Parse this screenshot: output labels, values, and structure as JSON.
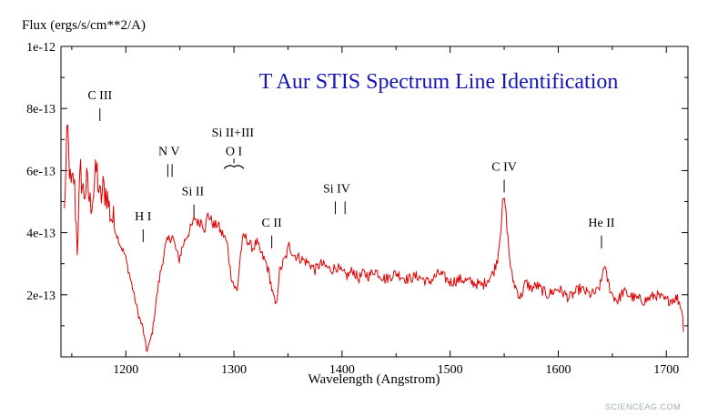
{
  "chart_data": {
    "type": "line",
    "title": "T Aur STIS Spectrum Line Identification",
    "title_color": "#1515b5",
    "line_color": "#e00000",
    "xlabel": "Wavelength (Angstrom)",
    "ylabel": "Flux (ergs/s/cm**2/A)",
    "xlim": [
      1140,
      1720
    ],
    "ylim": [
      0,
      1e-12
    ],
    "xticks": [
      1200,
      1300,
      1400,
      1500,
      1600,
      1700
    ],
    "xtick_labels": [
      "1200",
      "1300",
      "1400",
      "1500",
      "1600",
      "1700"
    ],
    "yticks": [
      2e-13,
      4e-13,
      6e-13,
      8e-13,
      1e-12
    ],
    "ytick_labels": [
      "2e-13",
      "4e-13",
      "6e-13",
      "8e-13",
      "1e-12"
    ],
    "grid": false,
    "series": [
      {
        "x": [
          1143,
          1146,
          1149,
          1152,
          1155,
          1158,
          1161,
          1164,
          1167,
          1170,
          1173,
          1176,
          1179,
          1182,
          1185,
          1188,
          1191,
          1195,
          1199,
          1203,
          1207,
          1210,
          1213,
          1216,
          1219,
          1222,
          1225,
          1228,
          1231,
          1234,
          1237,
          1240,
          1243,
          1246,
          1249,
          1252,
          1255,
          1258,
          1261,
          1264,
          1267,
          1270,
          1273,
          1276,
          1279,
          1282,
          1285,
          1288,
          1291,
          1294,
          1297,
          1300,
          1303,
          1306,
          1309,
          1312,
          1315,
          1318,
          1321,
          1324,
          1327,
          1330,
          1333,
          1336,
          1339,
          1342,
          1345,
          1348,
          1351,
          1355,
          1360,
          1365,
          1370,
          1375,
          1380,
          1385,
          1390,
          1395,
          1400,
          1405,
          1410,
          1415,
          1420,
          1425,
          1430,
          1440,
          1450,
          1460,
          1470,
          1480,
          1490,
          1500,
          1510,
          1520,
          1530,
          1535,
          1540,
          1544,
          1547,
          1549,
          1551,
          1553,
          1555,
          1557,
          1560,
          1565,
          1570,
          1575,
          1580,
          1590,
          1600,
          1610,
          1620,
          1630,
          1636,
          1640,
          1642,
          1644,
          1647,
          1650,
          1655,
          1660,
          1670,
          1680,
          1690,
          1700,
          1710,
          1714,
          1716
        ],
        "y": [
          4.6e-13,
          7.4e-13,
          5.3e-13,
          5.8e-13,
          3.6e-13,
          6e-13,
          5.2e-13,
          5.6e-13,
          4.9e-13,
          5.3e-13,
          6.1e-13,
          5e-13,
          5.4e-13,
          5.3e-13,
          4.7e-13,
          4.4e-13,
          4e-13,
          3.6e-13,
          3.3e-13,
          2.7e-13,
          2.1e-13,
          1.6e-13,
          1.2e-13,
          9e-14,
          2e-14,
          4e-14,
          9e-14,
          1.8e-13,
          2.5e-13,
          3.1e-13,
          3.6e-13,
          3.8e-13,
          3.9e-13,
          3.5e-13,
          3.1e-13,
          3.5e-13,
          3.8e-13,
          4e-13,
          4.2e-13,
          4.5e-13,
          4.3e-13,
          4.4e-13,
          4.1e-13,
          4.6e-13,
          4.4e-13,
          4.2e-13,
          4.3e-13,
          4e-13,
          3.9e-13,
          3.6e-13,
          2.7e-13,
          2.3e-13,
          2.1e-13,
          3.3e-13,
          3.9e-13,
          3.8e-13,
          3.6e-13,
          3.5e-13,
          3.7e-13,
          3.4e-13,
          3.2e-13,
          3e-13,
          2.6e-13,
          2e-13,
          1.6e-13,
          2.7e-13,
          3e-13,
          3.2e-13,
          3.6e-13,
          3.3e-13,
          3.2e-13,
          3.1e-13,
          3e-13,
          2.8e-13,
          3e-13,
          2.9e-13,
          2.8e-13,
          2.9e-13,
          2.7e-13,
          2.6e-13,
          2.8e-13,
          2.5e-13,
          2.7e-13,
          2.6e-13,
          2.8e-13,
          2.5e-13,
          2.7e-13,
          2.5e-13,
          2.6e-13,
          2.4e-13,
          2.7e-13,
          2.4e-13,
          2.5e-13,
          2.4e-13,
          2.3e-13,
          2.5e-13,
          2.7e-13,
          3.2e-13,
          4.2e-13,
          5.1e-13,
          4.9e-13,
          4e-13,
          3.2e-13,
          2.6e-13,
          2.3e-13,
          1.9e-13,
          2.4e-13,
          2.2e-13,
          2.3e-13,
          2e-13,
          2.2e-13,
          1.9e-13,
          2.2e-13,
          2e-13,
          2.1e-13,
          2.4e-13,
          3e-13,
          2.7e-13,
          2.3e-13,
          2e-13,
          1.8e-13,
          2.1e-13,
          1.9e-13,
          1.8e-13,
          2e-13,
          1.8e-13,
          1.9e-13,
          1.6e-13,
          9e-14
        ]
      }
    ],
    "line_ids": [
      {
        "label": "C III",
        "x": 1176,
        "flux": 8.3e-13,
        "ticks": [
          1176
        ]
      },
      {
        "label": "N V",
        "x": 1240,
        "flux": 6.5e-13,
        "ticks": [
          1238.8,
          1242.8
        ]
      },
      {
        "label": "H I",
        "x": 1216,
        "flux": 4.4e-13,
        "ticks": [
          1216
        ]
      },
      {
        "label": "Si II",
        "x": 1262,
        "flux": 5.2e-13,
        "ticks": [
          1263
        ]
      },
      {
        "label": "Si II+III",
        "x": 1299,
        "flux": 7.1e-13,
        "ticks": []
      },
      {
        "label": "O I",
        "x": 1300,
        "flux": 6.5e-13,
        "ticks": [
          1300
        ],
        "brace": true
      },
      {
        "label": "C II",
        "x": 1335,
        "flux": 4.2e-13,
        "ticks": [
          1335
        ]
      },
      {
        "label": "Si IV",
        "x": 1395,
        "flux": 5.3e-13,
        "ticks": [
          1393.8,
          1402.8
        ]
      },
      {
        "label": "C IV",
        "x": 1550,
        "flux": 6e-13,
        "ticks": [
          1550
        ]
      },
      {
        "label": "He II",
        "x": 1640,
        "flux": 4.2e-13,
        "ticks": [
          1640
        ]
      }
    ]
  },
  "watermark": "SCIENCEAG.COM"
}
